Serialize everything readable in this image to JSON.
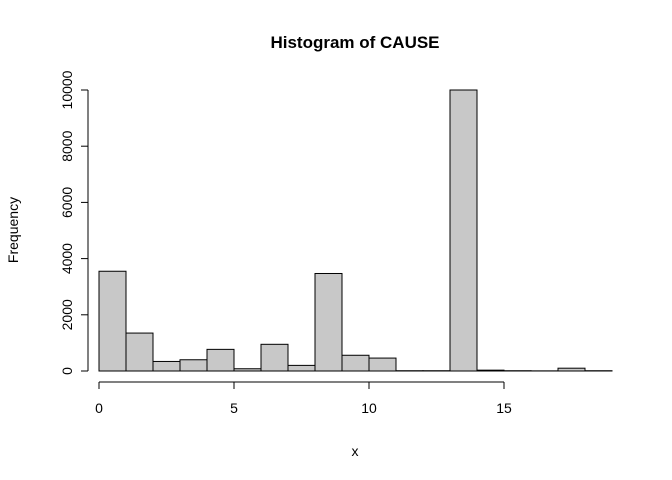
{
  "chart_data": {
    "type": "bar",
    "title": "Histogram of CAUSE",
    "xlabel": "x",
    "ylabel": "Frequency",
    "bar_color": "#C8C8C8",
    "border_color": "#000000",
    "xlim": [
      0,
      19
    ],
    "ylim": [
      0,
      10000
    ],
    "x_ticks": [
      0,
      5,
      10,
      15
    ],
    "y_ticks": [
      0,
      2000,
      4000,
      6000,
      8000,
      10000
    ],
    "bins": [
      {
        "x0": 0,
        "x1": 1,
        "value": 3550
      },
      {
        "x0": 1,
        "x1": 2,
        "value": 1350
      },
      {
        "x0": 2,
        "x1": 3,
        "value": 340
      },
      {
        "x0": 3,
        "x1": 4,
        "value": 400
      },
      {
        "x0": 4,
        "x1": 5,
        "value": 770
      },
      {
        "x0": 5,
        "x1": 6,
        "value": 80
      },
      {
        "x0": 6,
        "x1": 7,
        "value": 950
      },
      {
        "x0": 7,
        "x1": 8,
        "value": 200
      },
      {
        "x0": 8,
        "x1": 9,
        "value": 3470
      },
      {
        "x0": 9,
        "x1": 10,
        "value": 560
      },
      {
        "x0": 10,
        "x1": 11,
        "value": 460
      },
      {
        "x0": 11,
        "x1": 12,
        "value": 10
      },
      {
        "x0": 12,
        "x1": 13,
        "value": 10
      },
      {
        "x0": 13,
        "x1": 14,
        "value": 10000
      },
      {
        "x0": 14,
        "x1": 15,
        "value": 30
      },
      {
        "x0": 15,
        "x1": 16,
        "value": 10
      },
      {
        "x0": 16,
        "x1": 17,
        "value": 5
      },
      {
        "x0": 17,
        "x1": 18,
        "value": 100
      },
      {
        "x0": 18,
        "x1": 19,
        "value": 10
      }
    ]
  }
}
